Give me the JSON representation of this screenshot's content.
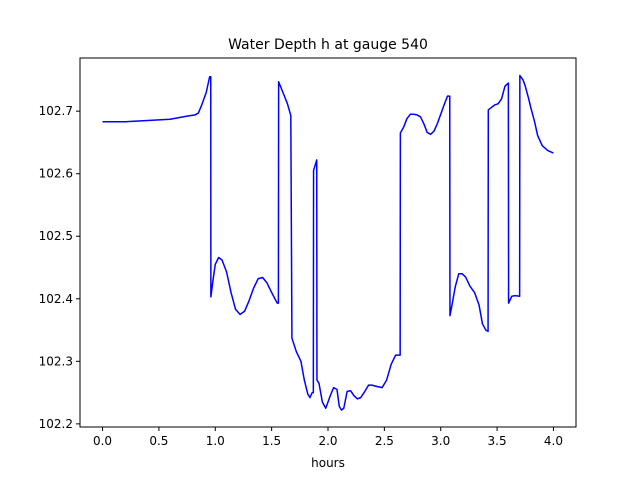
{
  "chart_data": {
    "type": "line",
    "title": "Water Depth h at gauge 540",
    "xlabel": "hours",
    "ylabel": "",
    "xlim": [
      -0.2,
      4.2
    ],
    "ylim": [
      102.195,
      102.785
    ],
    "xticks": [
      0.0,
      0.5,
      1.0,
      1.5,
      2.0,
      2.5,
      3.0,
      3.5,
      4.0
    ],
    "xtick_labels": [
      "0.0",
      "0.5",
      "1.0",
      "1.5",
      "2.0",
      "2.5",
      "3.0",
      "3.5",
      "4.0"
    ],
    "yticks": [
      102.2,
      102.3,
      102.4,
      102.5,
      102.6,
      102.7
    ],
    "ytick_labels": [
      "102.2",
      "102.3",
      "102.4",
      "102.5",
      "102.6",
      "102.7"
    ],
    "grid": false,
    "series": [
      {
        "color": "#0000ff",
        "x": [
          0.0,
          0.2,
          0.4,
          0.6,
          0.75,
          0.82,
          0.85,
          0.88,
          0.92,
          0.95,
          0.96,
          0.961,
          0.98,
          1.0,
          1.03,
          1.06,
          1.1,
          1.14,
          1.18,
          1.22,
          1.26,
          1.3,
          1.34,
          1.38,
          1.42,
          1.46,
          1.5,
          1.55,
          1.56,
          1.562,
          1.6,
          1.64,
          1.67,
          1.68,
          1.72,
          1.76,
          1.79,
          1.82,
          1.84,
          1.86,
          1.87,
          1.872,
          1.9,
          1.902,
          1.92,
          1.95,
          1.98,
          2.02,
          2.05,
          2.08,
          2.1,
          2.12,
          2.14,
          2.17,
          2.2,
          2.23,
          2.26,
          2.29,
          2.32,
          2.36,
          2.39,
          2.43,
          2.48,
          2.52,
          2.56,
          2.6,
          2.64,
          2.642,
          2.67,
          2.7,
          2.73,
          2.76,
          2.79,
          2.82,
          2.85,
          2.88,
          2.91,
          2.94,
          2.97,
          3.0,
          3.03,
          3.06,
          3.08,
          3.082,
          3.1,
          3.13,
          3.16,
          3.19,
          3.22,
          3.26,
          3.3,
          3.34,
          3.37,
          3.4,
          3.42,
          3.422,
          3.45,
          3.48,
          3.51,
          3.54,
          3.57,
          3.6,
          3.602,
          3.63,
          3.66,
          3.7,
          3.702,
          3.73,
          3.75,
          3.78,
          3.8,
          3.83,
          3.86,
          3.9,
          3.95,
          4.0
        ],
        "y": [
          102.683,
          102.683,
          102.685,
          102.687,
          102.692,
          102.694,
          102.697,
          102.71,
          102.73,
          102.755,
          102.755,
          102.403,
          102.43,
          102.455,
          102.466,
          102.462,
          102.443,
          102.41,
          102.383,
          102.375,
          102.38,
          102.397,
          102.417,
          102.432,
          102.434,
          102.425,
          102.41,
          102.393,
          102.393,
          102.747,
          102.73,
          102.712,
          102.693,
          102.337,
          102.315,
          102.3,
          102.27,
          102.248,
          102.242,
          102.25,
          102.25,
          102.605,
          102.622,
          102.27,
          102.265,
          102.235,
          102.225,
          102.245,
          102.258,
          102.255,
          102.228,
          102.222,
          102.225,
          102.252,
          102.253,
          102.245,
          102.24,
          102.242,
          102.25,
          102.262,
          102.262,
          102.26,
          102.258,
          102.27,
          102.295,
          102.31,
          102.31,
          102.665,
          102.674,
          102.688,
          102.695,
          102.695,
          102.694,
          102.691,
          102.68,
          102.666,
          102.663,
          102.668,
          102.68,
          102.695,
          102.71,
          102.724,
          102.724,
          102.373,
          102.39,
          102.42,
          102.44,
          102.44,
          102.435,
          102.42,
          102.41,
          102.39,
          102.36,
          102.35,
          102.348,
          102.702,
          102.706,
          102.71,
          102.712,
          102.72,
          102.74,
          102.745,
          102.393,
          102.404,
          102.405,
          102.404,
          102.757,
          102.75,
          102.74,
          102.72,
          102.705,
          102.685,
          102.661,
          102.645,
          102.637,
          102.633
        ]
      }
    ]
  }
}
